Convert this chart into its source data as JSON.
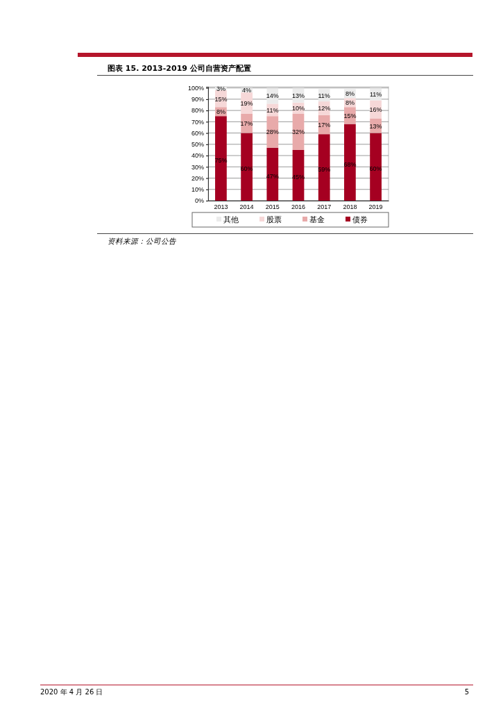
{
  "chart_data": {
    "type": "bar",
    "title": "图表 15. 2013-2019 公司自营资产配置",
    "categories": [
      "2013",
      "2014",
      "2015",
      "2016",
      "2017",
      "2018",
      "2019"
    ],
    "stacked": true,
    "series": [
      {
        "name": "债券",
        "color": "#a50021",
        "values": [
          75,
          60,
          47,
          45,
          59,
          68,
          60
        ],
        "value_labels": [
          "75%",
          "60%",
          "47%",
          "45%",
          "59%",
          "68%",
          "60%"
        ]
      },
      {
        "name": "基金",
        "color": "#e8aaaa",
        "values": [
          8,
          17,
          28,
          32,
          17,
          15,
          13
        ],
        "value_labels": [
          "8%",
          "17%",
          "28%",
          "32%",
          "17%",
          "15%",
          "13%"
        ]
      },
      {
        "name": "股票",
        "color": "#f6d8d8",
        "values": [
          15,
          19,
          11,
          10,
          12,
          8,
          16
        ],
        "value_labels": [
          "15%",
          "19%",
          "11%",
          "10%",
          "12%",
          "8%",
          "16%"
        ]
      },
      {
        "name": "其他",
        "color": "#ebebeb",
        "values": [
          3,
          4,
          14,
          13,
          11,
          8,
          11
        ],
        "value_labels": [
          "3%",
          "4%",
          "14%",
          "13%",
          "11%",
          "8%",
          "11%"
        ]
      }
    ],
    "ylim": [
      0,
      101
    ],
    "yticks": [
      {
        "value": 0,
        "label": "0%"
      },
      {
        "value": 10,
        "label": "10%"
      },
      {
        "value": 20,
        "label": "20%"
      },
      {
        "value": 30,
        "label": "30%"
      },
      {
        "value": 40,
        "label": "40%"
      },
      {
        "value": 50,
        "label": "50%"
      },
      {
        "value": 60,
        "label": "60%"
      },
      {
        "value": 70,
        "label": "70%"
      },
      {
        "value": 80,
        "label": "80%"
      },
      {
        "value": 90,
        "label": "90%"
      },
      {
        "value": 100,
        "label": "100%"
      }
    ],
    "grid": "y",
    "legend": "bottom",
    "annotations": [
      "资料来源：公司公告",
      "2020 年 4 月 26 日",
      "5"
    ]
  }
}
